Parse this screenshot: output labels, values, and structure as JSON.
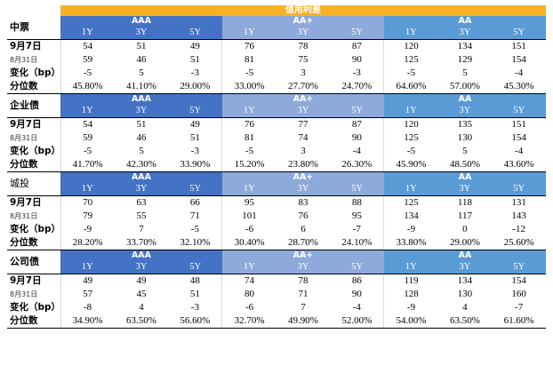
{
  "title": "信用利差",
  "groups": [
    "AAA",
    "AA+",
    "AA"
  ],
  "tenors": [
    "1Y",
    "3Y",
    "5Y"
  ],
  "sections": [
    {
      "name": "中票",
      "name_bold": true,
      "rows": [
        {
          "label": "9月7日",
          "style": "bold",
          "values": [
            "54",
            "51",
            "49",
            "76",
            "78",
            "87",
            "120",
            "134",
            "151"
          ]
        },
        {
          "label": "8月31日",
          "style": "small",
          "values": [
            "59",
            "46",
            "51",
            "81",
            "75",
            "90",
            "125",
            "129",
            "154"
          ]
        },
        {
          "label": "变化（bp）",
          "style": "bold",
          "values": [
            "-5",
            "5",
            "-3",
            "-5",
            "3",
            "-3",
            "-5",
            "5",
            "-4"
          ]
        },
        {
          "label": "分位数",
          "style": "bold",
          "values": [
            "45.80%",
            "41.10%",
            "29.00%",
            "33.00%",
            "27.70%",
            "24.70%",
            "64.60%",
            "57.00%",
            "45.30%"
          ]
        }
      ]
    },
    {
      "name": "企业债",
      "name_bold": true,
      "rows": [
        {
          "label": "9月7日",
          "style": "bold",
          "values": [
            "54",
            "51",
            "49",
            "76",
            "77",
            "87",
            "120",
            "135",
            "151"
          ]
        },
        {
          "label": "8月31日",
          "style": "small",
          "values": [
            "59",
            "46",
            "51",
            "81",
            "74",
            "90",
            "125",
            "130",
            "154"
          ]
        },
        {
          "label": "变化（bp）",
          "style": "bold",
          "values": [
            "-5",
            "5",
            "-3",
            "-5",
            "3",
            "-4",
            "-5",
            "5",
            "-4"
          ]
        },
        {
          "label": "分位数",
          "style": "bold",
          "values": [
            "41.70%",
            "42.30%",
            "33.90%",
            "15.20%",
            "23.80%",
            "26.30%",
            "45.90%",
            "48.50%",
            "43.60%"
          ]
        }
      ]
    },
    {
      "name": "城投",
      "name_bold": false,
      "rows": [
        {
          "label": "9月7日",
          "style": "bold",
          "values": [
            "70",
            "63",
            "66",
            "95",
            "83",
            "88",
            "125",
            "118",
            "131"
          ]
        },
        {
          "label": "8月31日",
          "style": "small",
          "values": [
            "79",
            "55",
            "71",
            "101",
            "76",
            "95",
            "134",
            "117",
            "143"
          ]
        },
        {
          "label": "变化（bp）",
          "style": "bold",
          "values": [
            "-9",
            "7",
            "-5",
            "-6",
            "6",
            "-7",
            "-9",
            "0",
            "-12"
          ]
        },
        {
          "label": "分位数",
          "style": "bold",
          "values": [
            "28.20%",
            "33.70%",
            "32.10%",
            "30.40%",
            "28.70%",
            "24.10%",
            "33.80%",
            "29.00%",
            "25.60%"
          ]
        }
      ]
    },
    {
      "name": "公司债",
      "name_bold": true,
      "rows": [
        {
          "label": "9月7日",
          "style": "bold",
          "values": [
            "49",
            "49",
            "48",
            "74",
            "78",
            "86",
            "119",
            "134",
            "154"
          ]
        },
        {
          "label": "8月31日",
          "style": "small",
          "values": [
            "57",
            "45",
            "51",
            "80",
            "71",
            "90",
            "128",
            "130",
            "160"
          ]
        },
        {
          "label": "变化（bp）",
          "style": "bold",
          "values": [
            "-8",
            "4",
            "-3",
            "-6",
            "7",
            "-4",
            "-9",
            "4",
            "-7"
          ]
        },
        {
          "label": "分位数",
          "style": "bold",
          "values": [
            "34.90%",
            "63.50%",
            "56.60%",
            "32.70%",
            "49.90%",
            "52.00%",
            "54.00%",
            "63.50%",
            "61.60%"
          ]
        }
      ]
    }
  ]
}
